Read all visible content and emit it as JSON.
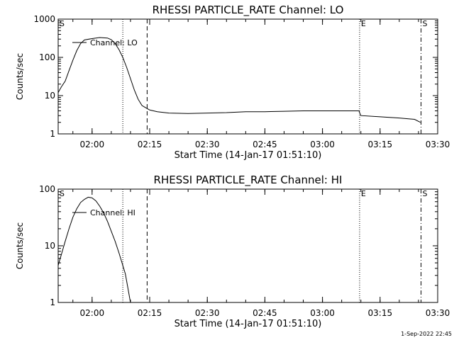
{
  "footer": {
    "timestamp": "1-Sep-2022 22:45"
  },
  "chart_data": [
    {
      "type": "line",
      "scale": "log",
      "title": "RHESSI PARTICLE_RATE Channel: LO",
      "xlabel": "Start Time (14-Jan-17 01:51:10)",
      "ylabel": "Counts/sec",
      "xlim": [
        "01:51:10",
        "03:30:00"
      ],
      "ylim": [
        1,
        1000
      ],
      "xticks": [
        "02:00",
        "02:15",
        "02:30",
        "02:45",
        "03:00",
        "03:15",
        "03:30"
      ],
      "yticks": [
        "1",
        "10",
        "100",
        "1000"
      ],
      "legend": {
        "label": "Channel: LO",
        "position": "top-left"
      },
      "markers": [
        {
          "time": "01:51:10",
          "label": "S",
          "style": "solid"
        },
        {
          "time": "02:08:00",
          "label": "",
          "style": "dotted"
        },
        {
          "time": "02:14:20",
          "label": "",
          "style": "dashed"
        },
        {
          "time": "03:09:40",
          "label": "E",
          "style": "dotted"
        },
        {
          "time": "03:25:40",
          "label": "S",
          "style": "dashdot"
        }
      ],
      "series": [
        {
          "name": "Channel: LO",
          "points": [
            [
              "01:51:10",
              12
            ],
            [
              "01:52:00",
              17
            ],
            [
              "01:53:00",
              24
            ],
            [
              "01:54:00",
              45
            ],
            [
              "01:55:00",
              85
            ],
            [
              "01:56:00",
              150
            ],
            [
              "01:57:00",
              230
            ],
            [
              "01:58:00",
              285
            ],
            [
              "02:00:00",
              310
            ],
            [
              "02:02:00",
              330
            ],
            [
              "02:04:00",
              320
            ],
            [
              "02:05:00",
              290
            ],
            [
              "02:06:00",
              230
            ],
            [
              "02:07:00",
              160
            ],
            [
              "02:08:00",
              100
            ],
            [
              "02:09:00",
              55
            ],
            [
              "02:10:00",
              28
            ],
            [
              "02:11:00",
              14
            ],
            [
              "02:12:00",
              8
            ],
            [
              "02:13:00",
              5.5
            ],
            [
              "02:14:00",
              4.8
            ],
            [
              "02:15:00",
              4.2
            ],
            [
              "02:16:00",
              4.0
            ],
            [
              "02:17:00",
              3.8
            ],
            [
              "02:20:00",
              3.5
            ],
            [
              "02:25:00",
              3.4
            ],
            [
              "02:30:00",
              3.5
            ],
            [
              "02:35:00",
              3.6
            ],
            [
              "02:40:00",
              3.8
            ],
            [
              "02:45:00",
              3.8
            ],
            [
              "02:50:00",
              3.9
            ],
            [
              "02:55:00",
              4.0
            ],
            [
              "03:00:00",
              4.0
            ],
            [
              "03:05:00",
              4.0
            ],
            [
              "03:09:30",
              4.0
            ],
            [
              "03:10:00",
              3.0
            ],
            [
              "03:15:00",
              2.8
            ],
            [
              "03:20:00",
              2.6
            ],
            [
              "03:24:00",
              2.4
            ],
            [
              "03:25:30",
              2.0
            ]
          ]
        }
      ]
    },
    {
      "type": "line",
      "scale": "log",
      "title": "RHESSI PARTICLE_RATE Channel: HI",
      "xlabel": "Start Time (14-Jan-17 01:51:10)",
      "ylabel": "Counts/sec",
      "xlim": [
        "01:51:10",
        "03:30:00"
      ],
      "ylim": [
        1,
        100
      ],
      "xticks": [
        "02:00",
        "02:15",
        "02:30",
        "02:45",
        "03:00",
        "03:15",
        "03:30"
      ],
      "yticks": [
        "1",
        "10",
        "100"
      ],
      "legend": {
        "label": "Channel: HI",
        "position": "top-left"
      },
      "markers": [
        {
          "time": "01:51:10",
          "label": "S",
          "style": "solid"
        },
        {
          "time": "02:08:00",
          "label": "",
          "style": "dotted"
        },
        {
          "time": "02:14:20",
          "label": "",
          "style": "dashed"
        },
        {
          "time": "03:09:40",
          "label": "E",
          "style": "dotted"
        },
        {
          "time": "03:25:40",
          "label": "S",
          "style": "dashdot"
        }
      ],
      "series": [
        {
          "name": "Channel: HI",
          "points": [
            [
              "01:51:10",
              4.5
            ],
            [
              "01:52:00",
              7
            ],
            [
              "01:53:00",
              12
            ],
            [
              "01:54:00",
              20
            ],
            [
              "01:55:00",
              32
            ],
            [
              "01:56:00",
              45
            ],
            [
              "01:57:00",
              58
            ],
            [
              "01:58:00",
              66
            ],
            [
              "01:59:00",
              72
            ],
            [
              "02:00:00",
              70
            ],
            [
              "02:01:00",
              62
            ],
            [
              "02:02:00",
              50
            ],
            [
              "02:03:00",
              38
            ],
            [
              "02:04:00",
              27
            ],
            [
              "02:05:00",
              18
            ],
            [
              "02:06:00",
              12
            ],
            [
              "02:07:00",
              7.5
            ],
            [
              "02:08:00",
              4.5
            ],
            [
              "02:08:40",
              3.2
            ],
            [
              "02:09:20",
              1.8
            ],
            [
              "02:10:00",
              1.0
            ]
          ]
        }
      ]
    }
  ]
}
